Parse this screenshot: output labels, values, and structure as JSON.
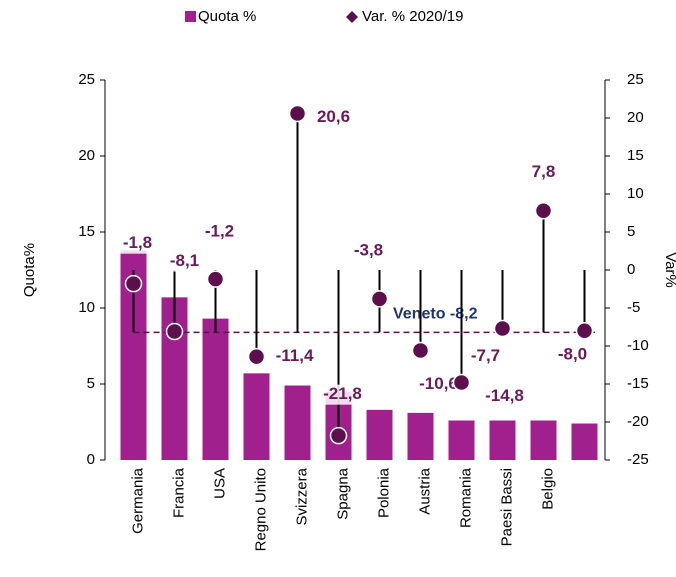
{
  "chart_data": {
    "type": "bar_dot",
    "categories": [
      "Germania",
      "Francia",
      "USA",
      "Regno Unito",
      "Svizzera",
      "Spagna",
      "Polonia",
      "Austria",
      "Romania",
      "Paesi Bassi",
      "Belgio",
      null
    ],
    "series": [
      {
        "name": "Quota %",
        "color": "#a0208e",
        "values": [
          13.8,
          10.7,
          9.3,
          5.7,
          4.9,
          4.5,
          3.3,
          3.1,
          2.6,
          2.6,
          2.6,
          2.4
        ]
      },
      {
        "name": "Var. % 2020/19",
        "color": "#5c0f4c",
        "axis": "y2",
        "values": [
          -1.8,
          -8.1,
          -1.2,
          -11.4,
          20.6,
          -21.8,
          -3.8,
          -10.6,
          -14.8,
          -7.7,
          7.8,
          -8.0
        ],
        "value_labels": [
          "-1,8",
          "-8,1",
          "-1,2",
          "-11,4",
          "20,6",
          "-21,8",
          "-3,8",
          "-10,6",
          "-14,8",
          "-7,7",
          "7,8",
          "-8,0"
        ]
      }
    ],
    "reference": {
      "value": -8.2,
      "label": "Veneto -8,2"
    },
    "ylabel": "Quota%",
    "y2label": "Var%",
    "ylim": [
      0,
      25
    ],
    "yticks": [
      0,
      5,
      10,
      15,
      20,
      25
    ],
    "y2lim": [
      -25,
      25
    ],
    "y2ticks": [
      -25,
      -20,
      -15,
      -10,
      -5,
      0,
      5,
      10,
      15,
      20,
      25
    ]
  }
}
